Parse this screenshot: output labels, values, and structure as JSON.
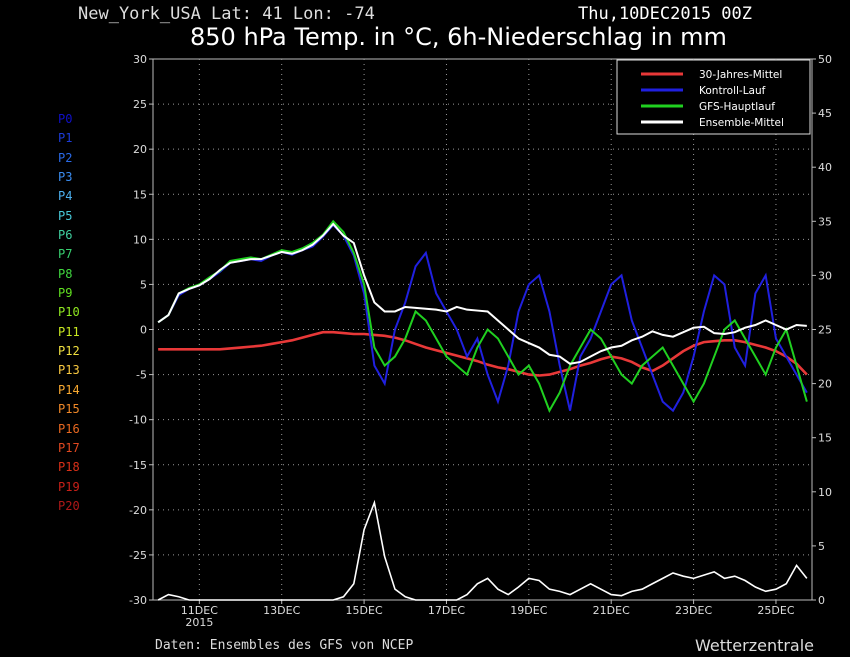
{
  "header": {
    "location": "New_York_USA   Lat: 41 Lon: -74",
    "run": "Thu,10DEC2015 00Z",
    "title": "850 hPa Temp. in °C, 6h-Niederschlag in mm"
  },
  "footer": {
    "credit": "Daten: Ensembles des GFS von NCEP",
    "brand": "Wetterzentrale"
  },
  "members": [
    {
      "label": "P0",
      "color": "#1010c8"
    },
    {
      "label": "P1",
      "color": "#1c3cd8"
    },
    {
      "label": "P2",
      "color": "#2a6ae8"
    },
    {
      "label": "P3",
      "color": "#3a8cf0"
    },
    {
      "label": "P4",
      "color": "#4cb0f0"
    },
    {
      "label": "P5",
      "color": "#48c8d8"
    },
    {
      "label": "P6",
      "color": "#40d0a0"
    },
    {
      "label": "P7",
      "color": "#38d070"
    },
    {
      "label": "P8",
      "color": "#40d840"
    },
    {
      "label": "P9",
      "color": "#60e020"
    },
    {
      "label": "P10",
      "color": "#90e820"
    },
    {
      "label": "P11",
      "color": "#c8e820"
    },
    {
      "label": "P12",
      "color": "#f0e040"
    },
    {
      "label": "P13",
      "color": "#f8c840"
    },
    {
      "label": "P14",
      "color": "#f8a830"
    },
    {
      "label": "P15",
      "color": "#f08828"
    },
    {
      "label": "P16",
      "color": "#e86820"
    },
    {
      "label": "P17",
      "color": "#e04820"
    },
    {
      "label": "P18",
      "color": "#d83018"
    },
    {
      "label": "P19",
      "color": "#c82018"
    },
    {
      "label": "P20",
      "color": "#b01818"
    }
  ],
  "chart_data": {
    "type": "line",
    "x": [
      "10DEC00",
      "10DEC06",
      "10DEC12",
      "10DEC18",
      "11DEC00",
      "11DEC06",
      "11DEC12",
      "11DEC18",
      "12DEC00",
      "12DEC06",
      "12DEC12",
      "12DEC18",
      "13DEC00",
      "13DEC06",
      "13DEC12",
      "13DEC18",
      "14DEC00",
      "14DEC06",
      "14DEC12",
      "14DEC18",
      "15DEC00",
      "15DEC06",
      "15DEC12",
      "15DEC18",
      "16DEC00",
      "16DEC06",
      "16DEC12",
      "16DEC18",
      "17DEC00",
      "17DEC06",
      "17DEC12",
      "17DEC18",
      "18DEC00",
      "18DEC06",
      "18DEC12",
      "18DEC18",
      "19DEC00",
      "19DEC06",
      "19DEC12",
      "19DEC18",
      "20DEC00",
      "20DEC06",
      "20DEC12",
      "20DEC18",
      "21DEC00",
      "21DEC06",
      "21DEC12",
      "21DEC18",
      "22DEC00",
      "22DEC06",
      "22DEC12",
      "22DEC18",
      "23DEC00",
      "23DEC06",
      "23DEC12",
      "23DEC18",
      "24DEC00",
      "24DEC06",
      "24DEC12",
      "24DEC18",
      "25DEC00",
      "25DEC06",
      "25DEC12",
      "25DEC18"
    ],
    "x_ticks": [
      {
        "index": 4,
        "label": "11DEC",
        "sublabel": "2015"
      },
      {
        "index": 12,
        "label": "13DEC"
      },
      {
        "index": 20,
        "label": "15DEC"
      },
      {
        "index": 28,
        "label": "17DEC"
      },
      {
        "index": 36,
        "label": "19DEC"
      },
      {
        "index": 44,
        "label": "21DEC"
      },
      {
        "index": 52,
        "label": "23DEC"
      },
      {
        "index": 60,
        "label": "25DEC"
      }
    ],
    "ylim": [
      -30,
      30
    ],
    "yticks": [
      -30,
      -25,
      -20,
      -15,
      -10,
      -5,
      0,
      5,
      10,
      15,
      20,
      25,
      30
    ],
    "y2lim": [
      0,
      50
    ],
    "y2ticks": [
      0,
      5,
      10,
      15,
      20,
      25,
      30,
      35,
      40,
      45,
      50
    ],
    "grid": true,
    "legend_position": "top-right",
    "series": [
      {
        "name": "30-Jahres-Mittel",
        "color": "#e83838",
        "axis": "left",
        "values": [
          -2.2,
          -2.2,
          -2.2,
          -2.2,
          -2.2,
          -2.2,
          -2.2,
          -2.1,
          -2.0,
          -1.9,
          -1.8,
          -1.6,
          -1.4,
          -1.2,
          -0.9,
          -0.6,
          -0.3,
          -0.3,
          -0.4,
          -0.5,
          -0.5,
          -0.6,
          -0.7,
          -0.9,
          -1.2,
          -1.6,
          -2.0,
          -2.3,
          -2.6,
          -2.9,
          -3.2,
          -3.5,
          -3.9,
          -4.2,
          -4.4,
          -4.7,
          -5.0,
          -5.1,
          -5.0,
          -4.7,
          -4.4,
          -4.0,
          -3.7,
          -3.3,
          -3.0,
          -3.2,
          -3.6,
          -4.2,
          -4.6,
          -4.0,
          -3.2,
          -2.4,
          -1.8,
          -1.4,
          -1.3,
          -1.2,
          -1.2,
          -1.4,
          -1.7,
          -2.0,
          -2.4,
          -3.0,
          -3.8,
          -5.0
        ]
      },
      {
        "name": "Kontroll-Lauf",
        "color": "#2020e0",
        "axis": "left",
        "values": [
          0.8,
          1.6,
          3.8,
          4.5,
          4.9,
          5.6,
          6.4,
          7.4,
          7.6,
          7.8,
          7.6,
          8.2,
          8.6,
          8.3,
          8.8,
          9.2,
          10.3,
          11.6,
          10.4,
          8.2,
          4.0,
          -4.0,
          -6.0,
          0.0,
          3.0,
          7.0,
          8.5,
          4.0,
          2.0,
          0.0,
          -3.0,
          -1.0,
          -5.0,
          -8.0,
          -4.0,
          2.0,
          5.0,
          6.0,
          2.0,
          -4.0,
          -9.0,
          -3.0,
          -1.0,
          2.0,
          5.0,
          6.0,
          1.0,
          -2.0,
          -5.0,
          -8.0,
          -9.0,
          -7.0,
          -3.0,
          2.0,
          6.0,
          5.0,
          -2.0,
          -4.0,
          4.0,
          6.0,
          -1.0,
          -3.0,
          -5.0,
          -7.0
        ]
      },
      {
        "name": "GFS-Hauptlauf",
        "color": "#20d020",
        "axis": "left",
        "values": [
          0.8,
          1.6,
          4.0,
          4.6,
          5.0,
          5.8,
          6.5,
          7.6,
          7.8,
          8.0,
          7.8,
          8.3,
          8.8,
          8.6,
          9.0,
          9.6,
          10.5,
          12.0,
          10.8,
          8.5,
          5.0,
          -2.0,
          -4.0,
          -3.0,
          -1.0,
          2.0,
          1.0,
          -1.0,
          -3.0,
          -4.0,
          -5.0,
          -2.0,
          0.0,
          -1.0,
          -3.0,
          -5.0,
          -4.0,
          -6.0,
          -9.0,
          -7.0,
          -4.0,
          -2.0,
          0.0,
          -1.0,
          -3.0,
          -5.0,
          -6.0,
          -4.0,
          -3.0,
          -2.0,
          -4.0,
          -6.0,
          -8.0,
          -6.0,
          -3.0,
          0.0,
          1.0,
          -1.0,
          -3.0,
          -5.0,
          -2.0,
          0.0,
          -4.0,
          -8.0
        ]
      },
      {
        "name": "Ensemble-Mittel",
        "color": "#ffffff",
        "axis": "left",
        "values": [
          0.8,
          1.6,
          4.0,
          4.5,
          4.9,
          5.6,
          6.6,
          7.4,
          7.6,
          7.8,
          7.8,
          8.2,
          8.6,
          8.4,
          8.8,
          9.4,
          10.4,
          11.7,
          10.4,
          9.6,
          6.0,
          3.0,
          2.0,
          2.0,
          2.5,
          2.4,
          2.3,
          2.2,
          2.0,
          2.5,
          2.2,
          2.1,
          2.0,
          1.0,
          0.0,
          -1.0,
          -1.5,
          -2.0,
          -2.8,
          -3.0,
          -3.8,
          -3.6,
          -3.0,
          -2.4,
          -2.0,
          -1.8,
          -1.2,
          -0.8,
          -0.2,
          -0.6,
          -0.8,
          -0.3,
          0.2,
          0.3,
          -0.4,
          -0.5,
          -0.3,
          0.2,
          0.5,
          1.0,
          0.5,
          0.0,
          0.5,
          0.4
        ]
      }
    ],
    "precipitation_mean": {
      "axis": "right",
      "color": "#ffffff",
      "values": [
        0,
        0.5,
        0.3,
        0,
        0,
        0,
        0,
        0,
        0,
        0,
        0,
        0,
        0,
        0,
        0,
        0,
        0,
        0,
        0.3,
        1.5,
        6.5,
        9.0,
        4.0,
        1.0,
        0.3,
        0,
        0,
        0,
        0,
        0,
        0.5,
        1.5,
        2.0,
        1.0,
        0.5,
        1.2,
        2.0,
        1.8,
        1.0,
        0.8,
        0.5,
        1.0,
        1.5,
        1.0,
        0.5,
        0.4,
        0.8,
        1.0,
        1.5,
        2.0,
        2.5,
        2.2,
        2.0,
        2.3,
        2.6,
        2.0,
        2.2,
        1.8,
        1.2,
        0.8,
        1.0,
        1.5,
        3.2,
        2.0
      ]
    }
  }
}
